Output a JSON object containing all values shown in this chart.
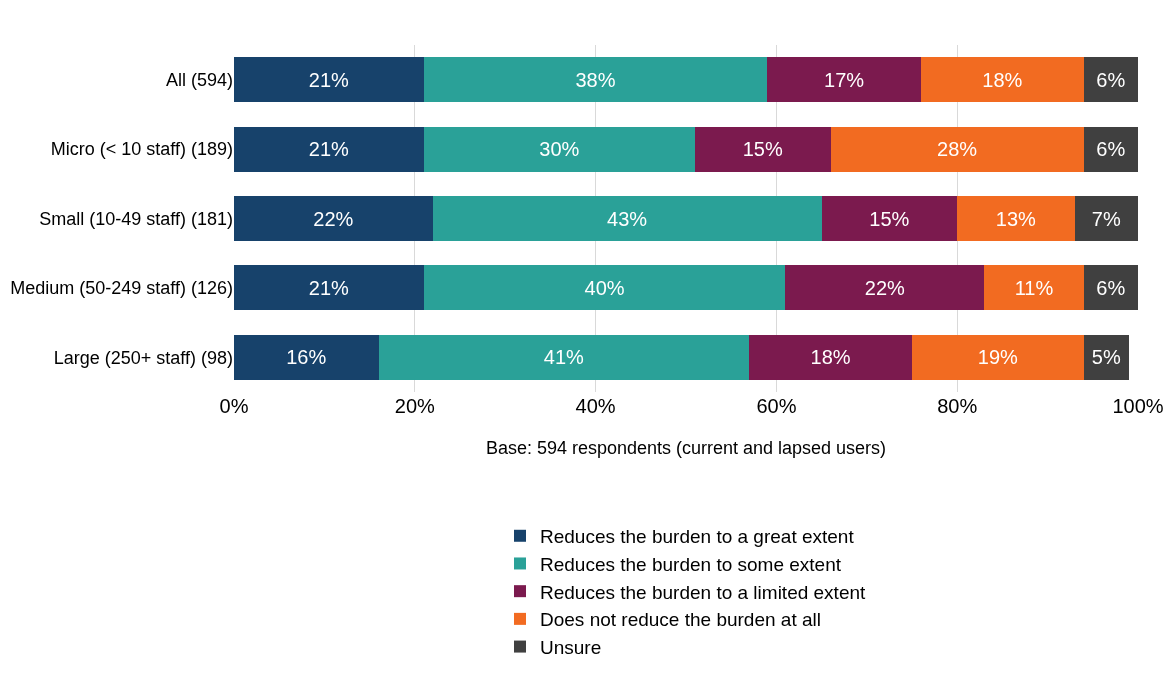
{
  "chart_data": {
    "type": "bar",
    "orientation": "horizontal",
    "stacked": true,
    "categories": [
      "All (594)",
      "Micro (< 10 staff) (189)",
      "Small (10-49 staff) (181)",
      "Medium (50-249 staff) (126)",
      "Large (250+ staff) (98)"
    ],
    "series": [
      {
        "name": "Reduces the burden to a great extent",
        "color": "#17426b",
        "values": [
          21,
          21,
          22,
          21,
          16
        ],
        "value_labels": [
          "21%",
          "21%",
          "22%",
          "21%",
          "16%"
        ]
      },
      {
        "name": "Reduces the burden to some extent",
        "color": "#2aa198",
        "values": [
          38,
          30,
          43,
          40,
          41
        ],
        "value_labels": [
          "38%",
          "30%",
          "43%",
          "40%",
          "41%"
        ]
      },
      {
        "name": "Reduces the burden to a limited extent",
        "color": "#7b1a4e",
        "values": [
          17,
          15,
          15,
          22,
          18
        ],
        "value_labels": [
          "17%",
          "15%",
          "15%",
          "22%",
          "18%"
        ]
      },
      {
        "name": "Does not reduce the burden at all",
        "color": "#f26b21",
        "values": [
          18,
          28,
          13,
          11,
          19
        ],
        "value_labels": [
          "18%",
          "28%",
          "13%",
          "11%",
          "19%"
        ]
      },
      {
        "name": "Unsure",
        "color": "#404040",
        "values": [
          6,
          6,
          7,
          6,
          5
        ],
        "value_labels": [
          "6%",
          "6%",
          "7%",
          "6%",
          "5%"
        ]
      }
    ],
    "xlabel": "Base: 594 respondents (current and lapsed users)",
    "xlim": [
      0,
      100
    ],
    "xticks": [
      {
        "value": 0,
        "label": "0%"
      },
      {
        "value": 20,
        "label": "20%"
      },
      {
        "value": 40,
        "label": "40%"
      },
      {
        "value": 60,
        "label": "60%"
      },
      {
        "value": 80,
        "label": "80%"
      },
      {
        "value": 100,
        "label": "100%"
      }
    ],
    "grid": "x",
    "legend": "bottom"
  }
}
